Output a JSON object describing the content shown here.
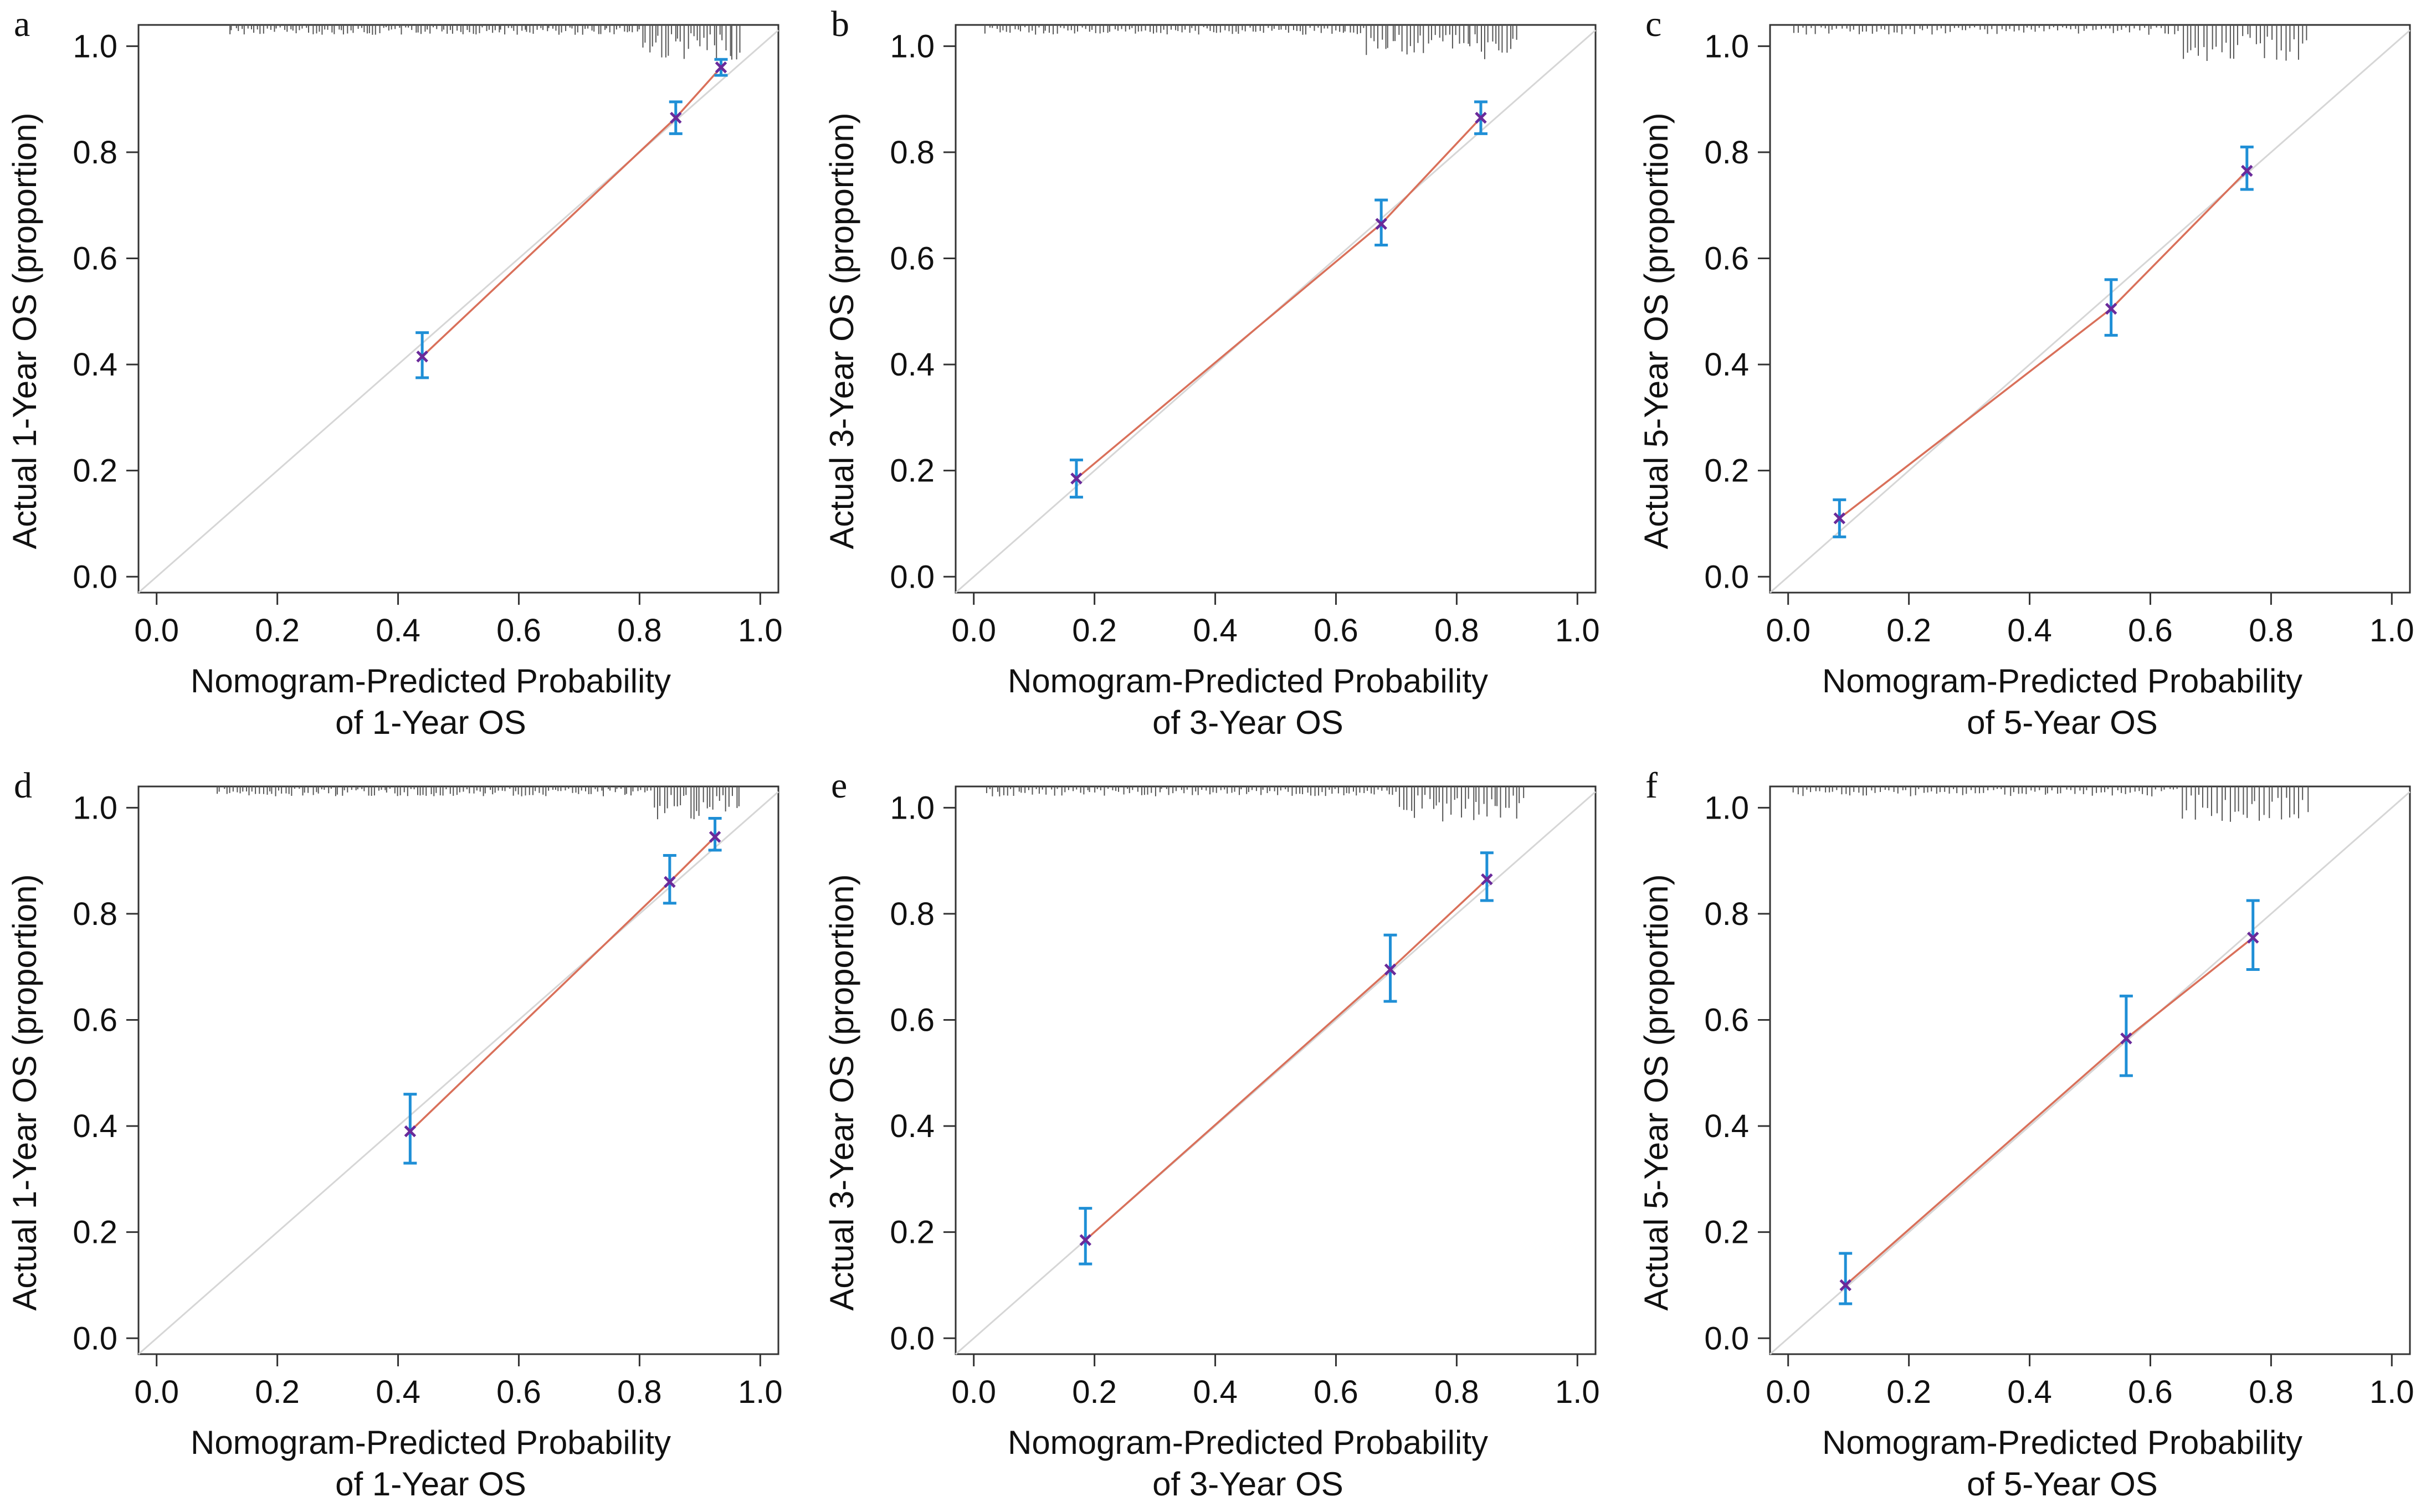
{
  "figure": {
    "style": {
      "ideal_line_color": "#d6d6d6",
      "calibration_line_color": "#d9705a",
      "point_color": "#6a2a9a",
      "errorbar_color": "#1f8fd6",
      "rug_color": "#555555",
      "axis_color": "#333333"
    }
  },
  "chart_data": [
    {
      "panel": "a",
      "type": "scatter",
      "xlabel_line1": "Nomogram-Predicted Probability",
      "xlabel_line2": "of 1-Year OS",
      "ylabel": "Actual 1-Year OS (proportion)",
      "xlim": [
        -0.03,
        1.03
      ],
      "ylim": [
        -0.03,
        1.04
      ],
      "xticks": [
        "0.0",
        "0.2",
        "0.4",
        "0.6",
        "0.8",
        "1.0"
      ],
      "yticks": [
        "0.0",
        "0.2",
        "0.4",
        "0.6",
        "0.8",
        "1.0"
      ],
      "points": [
        {
          "x": 0.44,
          "y": 0.415,
          "lo": 0.375,
          "hi": 0.46
        },
        {
          "x": 0.86,
          "y": 0.865,
          "lo": 0.835,
          "hi": 0.895
        },
        {
          "x": 0.935,
          "y": 0.96,
          "lo": 0.945,
          "hi": 0.975
        }
      ],
      "rug": {
        "from": 0.12,
        "to": 0.965,
        "dense_from": 0.8,
        "n": 160
      }
    },
    {
      "panel": "b",
      "type": "scatter",
      "xlabel_line1": "Nomogram-Predicted Probability",
      "xlabel_line2": "of 3-Year OS",
      "ylabel": "Actual 3-Year OS (proportion)",
      "xlim": [
        -0.03,
        1.03
      ],
      "ylim": [
        -0.03,
        1.04
      ],
      "xticks": [
        "0.0",
        "0.2",
        "0.4",
        "0.6",
        "0.8",
        "1.0"
      ],
      "yticks": [
        "0.0",
        "0.2",
        "0.4",
        "0.6",
        "0.8",
        "1.0"
      ],
      "points": [
        {
          "x": 0.17,
          "y": 0.185,
          "lo": 0.15,
          "hi": 0.22
        },
        {
          "x": 0.675,
          "y": 0.665,
          "lo": 0.625,
          "hi": 0.71
        },
        {
          "x": 0.84,
          "y": 0.865,
          "lo": 0.835,
          "hi": 0.895
        }
      ],
      "rug": {
        "from": 0.02,
        "to": 0.9,
        "dense_from": 0.65,
        "n": 150
      }
    },
    {
      "panel": "c",
      "type": "scatter",
      "xlabel_line1": "Nomogram-Predicted Probability",
      "xlabel_line2": "of 5-Year OS",
      "ylabel": "Actual 5-Year OS (proportion)",
      "xlim": [
        -0.03,
        1.03
      ],
      "ylim": [
        -0.03,
        1.04
      ],
      "xticks": [
        "0.0",
        "0.2",
        "0.4",
        "0.6",
        "0.8",
        "1.0"
      ],
      "yticks": [
        "0.0",
        "0.2",
        "0.4",
        "0.6",
        "0.8",
        "1.0"
      ],
      "points": [
        {
          "x": 0.085,
          "y": 0.11,
          "lo": 0.075,
          "hi": 0.145
        },
        {
          "x": 0.535,
          "y": 0.505,
          "lo": 0.455,
          "hi": 0.56
        },
        {
          "x": 0.76,
          "y": 0.765,
          "lo": 0.73,
          "hi": 0.81
        }
      ],
      "rug": {
        "from": 0.01,
        "to": 0.86,
        "dense_from": 0.65,
        "n": 120
      }
    },
    {
      "panel": "d",
      "type": "scatter",
      "xlabel_line1": "Nomogram-Predicted Probability",
      "xlabel_line2": "of 1-Year OS",
      "ylabel": "Actual 1-Year OS (proportion)",
      "xlim": [
        -0.03,
        1.03
      ],
      "ylim": [
        -0.03,
        1.04
      ],
      "xticks": [
        "0.0",
        "0.2",
        "0.4",
        "0.6",
        "0.8",
        "1.0"
      ],
      "yticks": [
        "0.0",
        "0.2",
        "0.4",
        "0.6",
        "0.8",
        "1.0"
      ],
      "points": [
        {
          "x": 0.42,
          "y": 0.39,
          "lo": 0.33,
          "hi": 0.46
        },
        {
          "x": 0.85,
          "y": 0.86,
          "lo": 0.82,
          "hi": 0.91
        },
        {
          "x": 0.925,
          "y": 0.945,
          "lo": 0.92,
          "hi": 0.98
        }
      ],
      "rug": {
        "from": 0.1,
        "to": 0.965,
        "dense_from": 0.82,
        "n": 160
      }
    },
    {
      "panel": "e",
      "type": "scatter",
      "xlabel_line1": "Nomogram-Predicted Probability",
      "xlabel_line2": "of 3-Year OS",
      "ylabel": "Actual 3-Year OS (proportion)",
      "xlim": [
        -0.03,
        1.03
      ],
      "ylim": [
        -0.03,
        1.04
      ],
      "xticks": [
        "0.0",
        "0.2",
        "0.4",
        "0.6",
        "0.8",
        "1.0"
      ],
      "yticks": [
        "0.0",
        "0.2",
        "0.4",
        "0.6",
        "0.8",
        "1.0"
      ],
      "points": [
        {
          "x": 0.185,
          "y": 0.185,
          "lo": 0.14,
          "hi": 0.245
        },
        {
          "x": 0.69,
          "y": 0.695,
          "lo": 0.635,
          "hi": 0.76
        },
        {
          "x": 0.85,
          "y": 0.865,
          "lo": 0.825,
          "hi": 0.915
        }
      ],
      "rug": {
        "from": 0.02,
        "to": 0.91,
        "dense_from": 0.7,
        "n": 150
      }
    },
    {
      "panel": "f",
      "type": "scatter",
      "xlabel_line1": "Nomogram-Predicted Probability",
      "xlabel_line2": "of 5-Year OS",
      "ylabel": "Actual 5-Year OS (proportion)",
      "xlim": [
        -0.03,
        1.03
      ],
      "ylim": [
        -0.03,
        1.04
      ],
      "xticks": [
        "0.0",
        "0.2",
        "0.4",
        "0.6",
        "0.8",
        "1.0"
      ],
      "yticks": [
        "0.0",
        "0.2",
        "0.4",
        "0.6",
        "0.8",
        "1.0"
      ],
      "points": [
        {
          "x": 0.095,
          "y": 0.1,
          "lo": 0.065,
          "hi": 0.16
        },
        {
          "x": 0.56,
          "y": 0.565,
          "lo": 0.495,
          "hi": 0.645
        },
        {
          "x": 0.77,
          "y": 0.755,
          "lo": 0.695,
          "hi": 0.825
        }
      ],
      "rug": {
        "from": 0.01,
        "to": 0.86,
        "dense_from": 0.65,
        "n": 120
      }
    }
  ]
}
